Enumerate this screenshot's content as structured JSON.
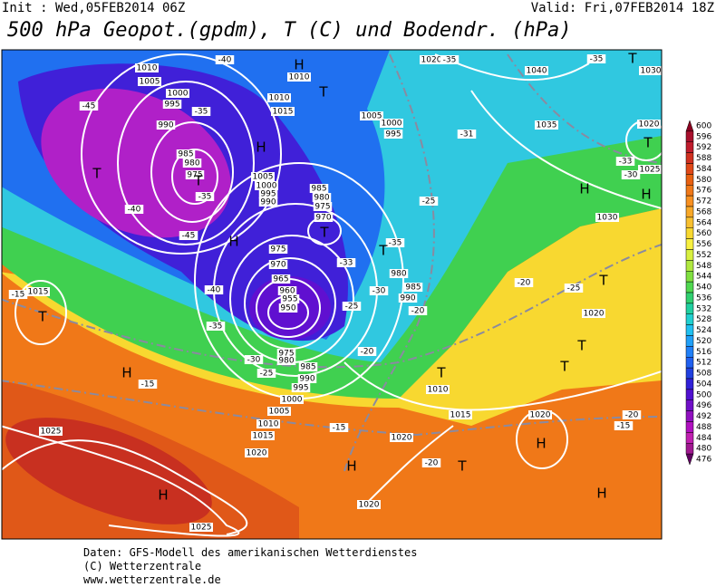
{
  "header": {
    "init": "Init : Wed,05FEB2014 06Z",
    "valid": "Valid: Fri,07FEB2014 18Z",
    "title": "500 hPa Geopot.(gpdm), T (C) und Bodendr. (hPa)"
  },
  "map_labels": [
    "1010",
    "1005",
    "1000",
    "995",
    "990",
    "985",
    "980",
    "975",
    "1010",
    "1010",
    "1015",
    "1005",
    "1000",
    "995",
    "1005",
    "1000",
    "995",
    "990",
    "985",
    "980",
    "975",
    "970",
    "975",
    "970",
    "965",
    "960",
    "955",
    "950",
    "975",
    "980",
    "985",
    "990",
    "995",
    "1000",
    "1005",
    "1010",
    "1015",
    "1020",
    "1025",
    "1025",
    "1020",
    "1020",
    "1015",
    "1010",
    "1020",
    "1020",
    "1030",
    "1035",
    "1040",
    "1020",
    "1030",
    "1020",
    "1025",
    "1015",
    "980",
    "985",
    "990",
    "-40",
    "-45",
    "-35",
    "-35",
    "-40",
    "-45",
    "-40",
    "-35",
    "-30",
    "-25",
    "-35",
    "-35",
    "-31",
    "-33",
    "-30",
    "-25",
    "-35",
    "-33",
    "-30",
    "-25",
    "-20",
    "-20",
    "-20",
    "-25",
    "-15",
    "-15",
    "-15",
    "-20",
    "-20",
    "-15",
    "H",
    "T",
    "H",
    "T",
    "T",
    "H",
    "T",
    "T",
    "T",
    "H",
    "T",
    "H",
    "H",
    "T",
    "H",
    "H",
    "T",
    "T",
    "T",
    "H",
    "H",
    "T",
    "T"
  ],
  "colorbar": {
    "ticks": [
      600,
      596,
      592,
      588,
      584,
      580,
      576,
      572,
      568,
      564,
      560,
      556,
      552,
      548,
      544,
      540,
      536,
      532,
      528,
      524,
      520,
      516,
      512,
      508,
      504,
      500,
      496,
      492,
      488,
      484,
      480,
      476
    ],
    "colors": [
      "#8b0020",
      "#a8102c",
      "#c01c2c",
      "#d03020",
      "#e04818",
      "#e86010",
      "#f07818",
      "#f89020",
      "#f8a828",
      "#f8c030",
      "#f8d830",
      "#f8f040",
      "#d8f040",
      "#b0e840",
      "#80e040",
      "#50d850",
      "#30d070",
      "#20d0a0",
      "#20d0d0",
      "#20c0f0",
      "#20a0f8",
      "#2080f8",
      "#2060f0",
      "#2040e0",
      "#3020d8",
      "#5010d0",
      "#7010c8",
      "#9010c0",
      "#b010c0",
      "#c020b0",
      "#a01890",
      "#600060"
    ]
  },
  "footer": [
    "Daten: GFS-Modell des amerikanischen Wetterdienstes",
    "(C) Wetterzentrale",
    "www.wetterzentrale.de"
  ]
}
